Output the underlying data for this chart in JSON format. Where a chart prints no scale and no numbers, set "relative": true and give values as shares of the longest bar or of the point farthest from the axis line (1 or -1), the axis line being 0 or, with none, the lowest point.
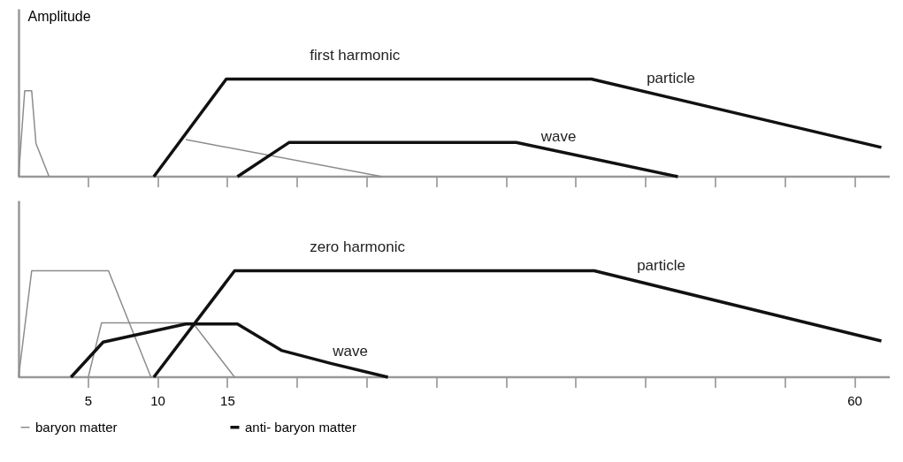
{
  "chart_data": [
    {
      "type": "line",
      "title": "first harmonic",
      "ylabel": "Amplitude",
      "relative": true,
      "legend": false,
      "tick_labels": false,
      "grid": false,
      "xlim": [
        0,
        62.5
      ],
      "xticks": [
        {
          "value": 5,
          "label": null
        },
        {
          "value": 10,
          "label": null
        },
        {
          "value": 15,
          "label": null
        },
        {
          "value": 20,
          "label": null
        },
        {
          "value": 25,
          "label": null
        },
        {
          "value": 30,
          "label": null
        },
        {
          "value": 35,
          "label": null
        },
        {
          "value": 40,
          "label": null
        },
        {
          "value": 45,
          "label": null
        },
        {
          "value": 50,
          "label": null
        },
        {
          "value": 55,
          "label": null
        },
        {
          "value": 60,
          "label": null
        }
      ],
      "series": [
        {
          "color": "#8c8c8c",
          "x": [
            0,
            0.44,
            0.94,
            1.25,
            2.19,
            7,
            12.0,
            26.1
          ],
          "values": [
            0,
            0.88,
            0.88,
            0.34,
            0,
            null,
            0.38,
            0
          ]
        },
        {
          "color": "#111111",
          "x": [
            9.7,
            14.9,
            41.1,
            61.9,
            40,
            15.7,
            19.4,
            35.7,
            47.3
          ],
          "values": [
            0,
            1,
            1,
            0.3,
            null,
            0,
            0.35,
            0.35,
            0
          ]
        }
      ],
      "annotations": [
        {
          "text": "particle",
          "x": 46.8,
          "y": 0.81
        },
        {
          "text": "wave",
          "x": 35.7,
          "y": 0.35
        }
      ]
    },
    {
      "type": "line",
      "title": "zero harmonic",
      "relative": true,
      "legend": "bottom",
      "tick_labels": "x",
      "grid": false,
      "xlim": [
        0,
        62.5
      ],
      "xticks": [
        5,
        10,
        15,
        {
          "value": 20,
          "label": null
        },
        {
          "value": 25,
          "label": null
        },
        {
          "value": 30,
          "label": null
        },
        {
          "value": 35,
          "label": null
        },
        {
          "value": 40,
          "label": null
        },
        {
          "value": 45,
          "label": null
        },
        {
          "value": 50,
          "label": null
        },
        {
          "value": 55,
          "label": null
        },
        60
      ],
      "series": [
        {
          "name": "baryon matter",
          "color": "#8c8c8c",
          "x": [
            0,
            0.94,
            6.45,
            9.5,
            7,
            5.0,
            5.95,
            12.5,
            15.5
          ],
          "values": [
            0,
            1,
            1,
            0,
            null,
            0,
            0.51,
            0.51,
            0
          ]
        },
        {
          "name": "anti- baryon matter",
          "color": "#111111",
          "x": [
            9.7,
            15.5,
            41.3,
            61.9,
            30,
            3.76,
            6.07,
            12.0,
            15.7,
            18.9,
            22.4,
            26.5
          ],
          "values": [
            0,
            1,
            1,
            0.34,
            null,
            0,
            0.33,
            0.5,
            0.5,
            0.25,
            0.13,
            0
          ]
        }
      ],
      "annotations": [
        {
          "text": "particle",
          "x": 46.1,
          "y": 0.85
        },
        {
          "text": "wave",
          "x": 22.4,
          "y": 0.13
        }
      ]
    }
  ]
}
